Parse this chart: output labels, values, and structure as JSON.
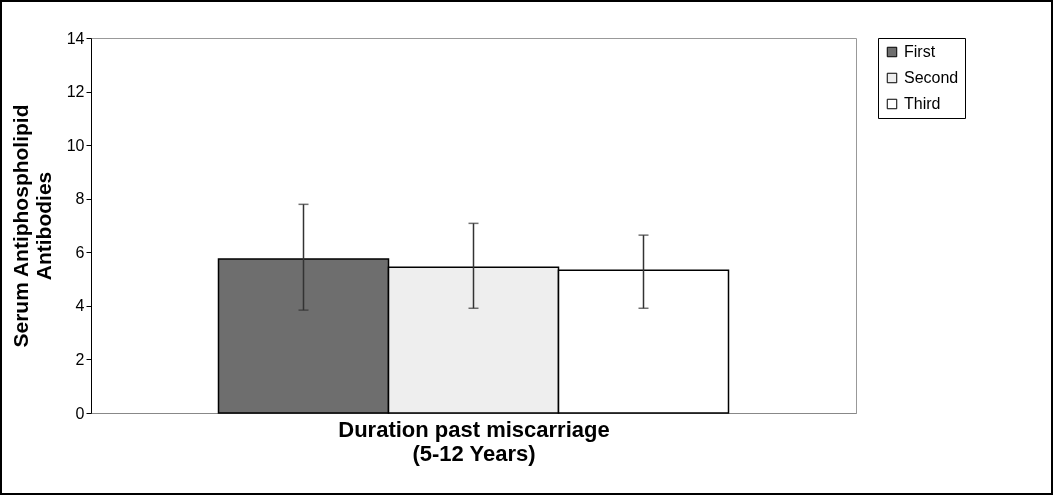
{
  "chart_data": {
    "type": "bar",
    "xlabel": "Duration past miscarriage\n(5-12 Years)",
    "ylabel": "Serum Antiphospholipid\nAntibodies",
    "categories": [
      null
    ],
    "series": [
      {
        "name": "First",
        "color": "#6e6e6e",
        "values": [
          5.75
        ],
        "errors": [
          [
            3.84,
            7.79
          ]
        ]
      },
      {
        "name": "Second",
        "color": "#eeeeee",
        "values": [
          5.44
        ],
        "errors": [
          [
            3.91,
            7.08
          ]
        ]
      },
      {
        "name": "Third",
        "color": "#ffffff",
        "values": [
          5.33
        ],
        "errors": [
          [
            3.91,
            6.64
          ]
        ]
      }
    ],
    "ylim": [
      0,
      14
    ],
    "yticks": [
      0,
      2,
      4,
      6,
      8,
      10,
      12,
      14
    ],
    "grid": false,
    "legend": "right"
  }
}
